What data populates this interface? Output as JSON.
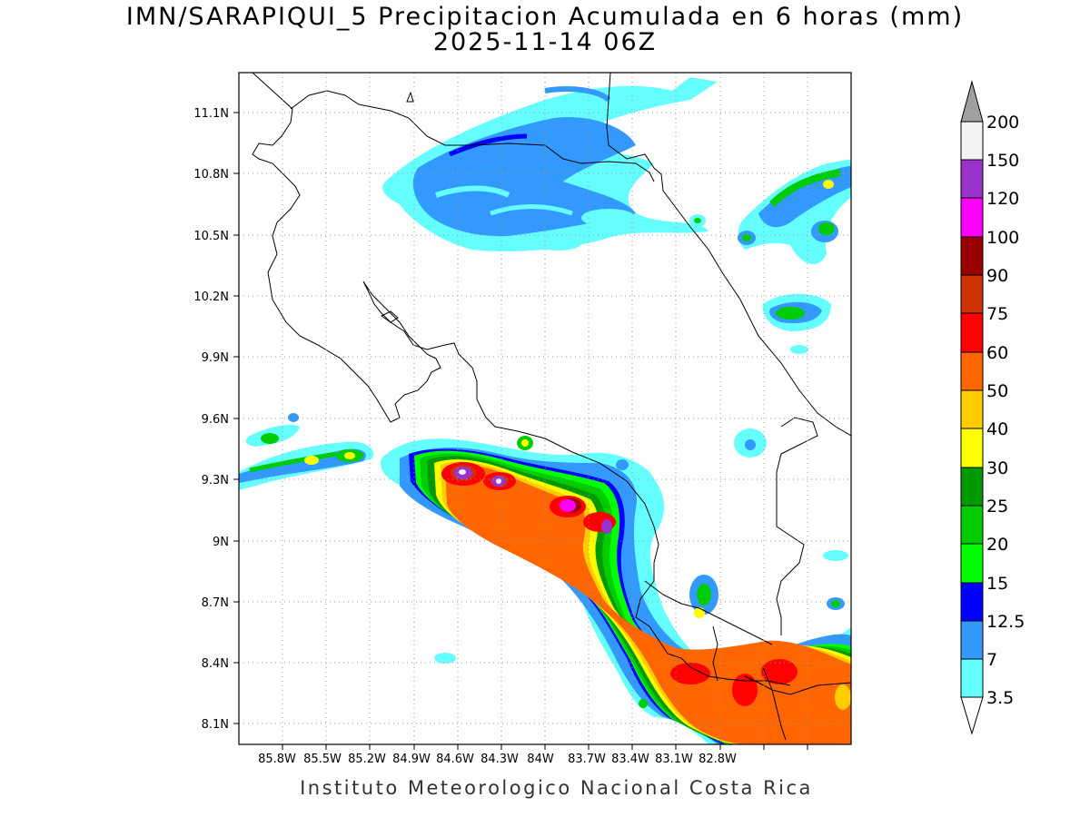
{
  "title": {
    "line1": "IMN/SARAPIQUI_5 Precipitacion Acumulada en 6 horas (mm)",
    "line2": "2025-11-14 06Z"
  },
  "footer": "Instituto Meteorologico Nacional Costa Rica",
  "map": {
    "x_ticks": [
      "85.8W",
      "85.5W",
      "85.2W",
      "84.9W",
      "84.6W",
      "84.3W",
      "84W",
      "83.7W",
      "83.4W",
      "83.1W",
      "82.8W"
    ],
    "y_ticks": [
      "11.1N",
      "10.8N",
      "10.5N",
      "10.2N",
      "9.9N",
      "9.6N",
      "9.3N",
      "9N",
      "8.7N",
      "8.4N",
      "8.1N"
    ],
    "grid": "dotted"
  },
  "colorbar": {
    "levels": [
      "3.5",
      "7",
      "12.5",
      "15",
      "20",
      "25",
      "30",
      "40",
      "50",
      "60",
      "75",
      "90",
      "100",
      "120",
      "150",
      "200"
    ],
    "colors": [
      "#66ffff",
      "#3399ff",
      "#0000ff",
      "#00ff00",
      "#00cc00",
      "#009900",
      "#ffff00",
      "#ffcc00",
      "#ff6600",
      "#ff0000",
      "#cc3300",
      "#990000",
      "#ff00ff",
      "#9933cc",
      "#f2f2f2",
      "#a0a0a0"
    ]
  }
}
